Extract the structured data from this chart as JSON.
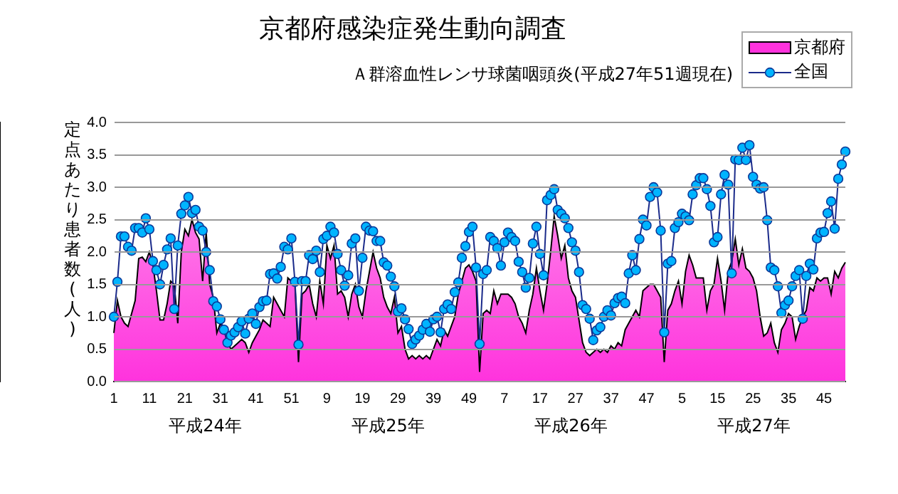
{
  "chart_data": {
    "type": "line",
    "title": "京都府感染症発生動向調査",
    "subtitle": "Ａ群溶血性レンサ球菌咽頭炎(平成27年51週現在)",
    "ylabel": "定点あたり患者数(人)",
    "annotations": [
      "平成24年",
      "平成25年",
      "平成26年",
      "平成27年"
    ],
    "categories": [
      "1",
      null,
      null,
      null,
      null,
      null,
      null,
      null,
      null,
      null,
      "11",
      null,
      null,
      null,
      null,
      null,
      null,
      null,
      null,
      null,
      "21",
      null,
      null,
      null,
      null,
      null,
      null,
      null,
      null,
      null,
      "31",
      null,
      null,
      null,
      null,
      null,
      null,
      null,
      null,
      null,
      "41",
      null,
      null,
      null,
      null,
      null,
      null,
      null,
      null,
      null,
      "51",
      null,
      null,
      null,
      null,
      null,
      null,
      null,
      null,
      null,
      "9",
      null,
      null,
      null,
      null,
      null,
      null,
      null,
      null,
      null,
      "19",
      null,
      null,
      null,
      null,
      null,
      null,
      null,
      null,
      null,
      "29",
      null,
      null,
      null,
      null,
      null,
      null,
      null,
      null,
      null,
      "39",
      null,
      null,
      null,
      null,
      null,
      null,
      null,
      null,
      null,
      "49",
      null,
      null,
      null,
      null,
      null,
      null,
      null,
      null,
      null,
      "7",
      null,
      null,
      null,
      null,
      null,
      null,
      null,
      null,
      null,
      "17",
      null,
      null,
      null,
      null,
      null,
      null,
      null,
      null,
      null,
      "27",
      null,
      null,
      null,
      null,
      null,
      null,
      null,
      null,
      null,
      "37",
      null,
      null,
      null,
      null,
      null,
      null,
      null,
      null,
      null,
      "47",
      null,
      null,
      null,
      null,
      null,
      null,
      null,
      null,
      null,
      "5",
      null,
      null,
      null,
      null,
      null,
      null,
      null,
      null,
      null,
      "15",
      null,
      null,
      null,
      null,
      null,
      null,
      null,
      null,
      null,
      "25",
      null,
      null,
      null,
      null,
      null,
      null,
      null,
      null,
      null,
      "35",
      null,
      null,
      null,
      null,
      null,
      null,
      null,
      null,
      null,
      "45",
      null,
      null,
      null,
      null,
      null,
      null
    ],
    "series": [
      {
        "name": "京都府",
        "type": "area",
        "color": "#ff33dd",
        "values": [
          0.75,
          1.25,
          1.0,
          0.9,
          0.85,
          1.05,
          1.25,
          1.9,
          1.92,
          1.85,
          2.0,
          1.8,
          1.4,
          0.95,
          0.95,
          1.2,
          1.55,
          1.5,
          0.9,
          2.0,
          2.35,
          2.25,
          2.5,
          2.3,
          2.2,
          1.55,
          2.3,
          1.5,
          1.3,
          0.75,
          0.9,
          0.8,
          0.6,
          0.5,
          0.55,
          0.6,
          0.65,
          0.6,
          0.45,
          0.6,
          0.7,
          0.8,
          0.95,
          0.9,
          0.85,
          1.3,
          1.2,
          1.1,
          1.0,
          1.6,
          1.55,
          1.5,
          0.3,
          1.35,
          1.4,
          1.5,
          1.2,
          1.0,
          1.55,
          1.2,
          2.1,
          1.9,
          2.1,
          1.35,
          1.4,
          1.3,
          1.0,
          1.35,
          1.5,
          1.15,
          1.0,
          1.4,
          1.7,
          2.0,
          1.75,
          1.6,
          1.3,
          1.15,
          1.05,
          1.3,
          0.75,
          0.85,
          0.5,
          0.35,
          0.4,
          0.35,
          0.4,
          0.35,
          0.4,
          0.35,
          0.5,
          0.65,
          0.55,
          0.8,
          0.7,
          0.85,
          1.0,
          1.35,
          1.55,
          1.75,
          1.8,
          1.7,
          1.55,
          0.15,
          1.05,
          1.1,
          1.05,
          1.4,
          1.2,
          1.35,
          1.35,
          1.35,
          1.3,
          1.2,
          1.0,
          0.9,
          0.75,
          1.1,
          1.35,
          1.75,
          1.4,
          1.1,
          1.5,
          2.0,
          2.55,
          2.25,
          1.9,
          2.1,
          1.6,
          1.4,
          1.3,
          0.95,
          0.6,
          0.45,
          0.4,
          0.45,
          0.5,
          0.45,
          0.5,
          0.45,
          0.55,
          0.5,
          0.6,
          0.55,
          0.8,
          0.9,
          1.0,
          1.1,
          1.0,
          1.4,
          1.45,
          1.5,
          1.5,
          1.4,
          1.3,
          0.3,
          1.1,
          1.2,
          1.4,
          1.55,
          1.2,
          1.7,
          1.95,
          1.8,
          1.6,
          1.6,
          1.6,
          1.1,
          1.4,
          1.5,
          1.9,
          1.55,
          1.1,
          1.7,
          1.85,
          2.2,
          1.8,
          2.05,
          1.75,
          1.7,
          1.6,
          1.4,
          1.0,
          0.7,
          0.75,
          0.9,
          0.6,
          0.45,
          0.8,
          0.9,
          1.05,
          1.0,
          0.65,
          0.85,
          1.0,
          1.1,
          1.45,
          1.4,
          1.6,
          1.55,
          1.6,
          1.6,
          1.35,
          1.7,
          1.6,
          1.75,
          1.84
        ]
      },
      {
        "name": "全国",
        "type": "line",
        "color": "#00b4ff",
        "marker": "circle",
        "line_style": "solid",
        "values": [
          1.0,
          1.54,
          2.24,
          2.24,
          2.08,
          2.02,
          2.37,
          2.37,
          2.3,
          2.52,
          2.35,
          1.86,
          1.72,
          1.5,
          1.8,
          2.04,
          2.21,
          1.12,
          2.1,
          2.59,
          2.72,
          2.85,
          2.6,
          2.65,
          2.39,
          2.33,
          2.0,
          1.72,
          1.24,
          1.16,
          0.96,
          0.8,
          0.6,
          0.71,
          0.76,
          0.84,
          0.93,
          0.74,
          0.97,
          1.05,
          0.89,
          1.15,
          1.24,
          1.25,
          1.66,
          1.67,
          1.59,
          1.77,
          2.08,
          2.04,
          2.21,
          1.54,
          0.57,
          1.55,
          1.55,
          1.95,
          1.89,
          2.02,
          1.69,
          2.2,
          2.25,
          2.39,
          2.3,
          1.97,
          1.72,
          1.48,
          1.64,
          2.13,
          2.21,
          1.4,
          1.91,
          2.39,
          2.33,
          2.32,
          2.17,
          2.17,
          1.84,
          1.79,
          1.62,
          1.47,
          1.08,
          1.13,
          0.96,
          0.81,
          0.58,
          0.65,
          0.71,
          0.8,
          0.89,
          0.77,
          0.96,
          1.0,
          0.76,
          1.12,
          1.19,
          1.12,
          1.38,
          1.53,
          1.91,
          2.09,
          2.31,
          2.39,
          1.76,
          0.58,
          1.66,
          1.72,
          2.23,
          2.17,
          2.06,
          1.79,
          2.15,
          2.3,
          2.23,
          2.17,
          1.85,
          1.69,
          1.45,
          1.6,
          2.13,
          2.39,
          1.97,
          1.64,
          2.8,
          2.88,
          2.97,
          2.65,
          2.59,
          2.52,
          2.37,
          2.15,
          2.02,
          1.69,
          1.18,
          1.12,
          0.97,
          0.64,
          0.79,
          0.84,
          1.0,
          1.1,
          1.02,
          1.21,
          1.29,
          1.31,
          1.21,
          1.67,
          1.95,
          1.72,
          2.2,
          2.5,
          2.41,
          2.85,
          3.0,
          2.92,
          2.33,
          0.76,
          1.82,
          1.86,
          2.37,
          2.46,
          2.59,
          2.55,
          2.49,
          2.89,
          3.03,
          3.14,
          3.14,
          2.97,
          2.71,
          2.15,
          2.23,
          2.89,
          3.19,
          3.04,
          1.67,
          3.43,
          3.42,
          3.61,
          3.42,
          3.65,
          3.16,
          3.04,
          2.98,
          3.0,
          2.49,
          1.76,
          1.72,
          1.47,
          1.06,
          1.18,
          1.25,
          1.47,
          1.63,
          1.72,
          0.97,
          1.63,
          1.82,
          1.73,
          2.21,
          2.3,
          2.31,
          2.6,
          2.78,
          2.36,
          3.13,
          3.35,
          3.55
        ]
      }
    ],
    "ylim": [
      0,
      4
    ],
    "yticks": [
      {
        "value": 0,
        "label": "0.0"
      },
      {
        "value": 0.5,
        "label": "0.5"
      },
      {
        "value": 1,
        "label": "1.0"
      },
      {
        "value": 1.5,
        "label": "1.5"
      },
      {
        "value": 2,
        "label": "2.0"
      },
      {
        "value": 2.5,
        "label": "2.5"
      },
      {
        "value": 3,
        "label": "3.0"
      },
      {
        "value": 3.5,
        "label": "3.5"
      },
      {
        "value": 4,
        "label": "4.0"
      }
    ],
    "grid": "y",
    "legend": "top right"
  }
}
